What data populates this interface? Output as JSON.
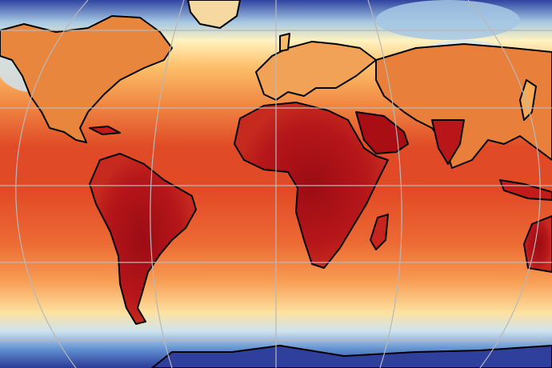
{
  "map": {
    "projection": "robinson-like",
    "graticule": {
      "color": "#b8b8b8",
      "meridians_deg": [
        -180,
        -120,
        -60,
        0,
        60,
        120,
        180
      ],
      "parallels_deg": [
        -60,
        -30,
        0,
        30,
        60
      ]
    },
    "coastline_color": "#000000",
    "colormap": {
      "name": "RdYlBu_r",
      "stops": [
        "#2a3a99",
        "#4a76c2",
        "#a6c8e4",
        "#eef4e8",
        "#ffefae",
        "#fdc06a",
        "#f6853f",
        "#e44b26",
        "#c41f1b",
        "#a00d14"
      ]
    },
    "legend": "none",
    "labels": "none"
  }
}
